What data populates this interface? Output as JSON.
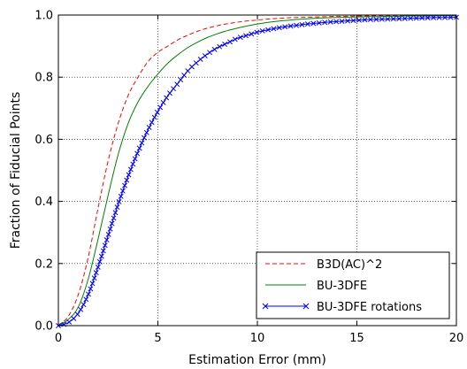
{
  "chart_data": {
    "type": "line",
    "xlabel": "Estimation Error (mm)",
    "ylabel": "Fraction of Fiducial Points",
    "xlim": [
      0,
      20
    ],
    "ylim": [
      0.0,
      1.0
    ],
    "x_ticks": [
      0,
      5,
      10,
      15,
      20
    ],
    "x_tick_labels": [
      "0",
      "5",
      "10",
      "15",
      "20"
    ],
    "y_ticks": [
      0.0,
      0.2,
      0.4,
      0.6,
      0.8,
      1.0
    ],
    "y_tick_labels": [
      "0.0",
      "0.2",
      "0.4",
      "0.6",
      "0.8",
      "1.0"
    ],
    "grid": true,
    "legend_position": "bottom-right",
    "x": [
      0,
      0.5,
      1,
      1.5,
      2,
      2.5,
      3,
      3.5,
      4,
      4.5,
      5,
      5.5,
      6,
      6.5,
      7,
      7.5,
      8,
      8.5,
      9,
      9.5,
      10,
      10.5,
      11,
      11.5,
      12,
      12.5,
      13,
      13.5,
      14,
      14.5,
      15,
      15.5,
      16,
      16.5,
      17,
      17.5,
      18,
      18.5,
      19,
      19.5,
      20
    ],
    "series": [
      {
        "name": "B3D(AC)^2",
        "color": "#ff0000",
        "style": "dashed",
        "marker": "none",
        "values": [
          0.0,
          0.03,
          0.1,
          0.22,
          0.38,
          0.53,
          0.65,
          0.74,
          0.8,
          0.85,
          0.88,
          0.9,
          0.92,
          0.935,
          0.948,
          0.958,
          0.966,
          0.972,
          0.977,
          0.981,
          0.984,
          0.987,
          0.989,
          0.991,
          0.992,
          0.993,
          0.994,
          0.995,
          0.996,
          0.996,
          0.997,
          0.997,
          0.998,
          0.998,
          0.998,
          0.999,
          0.999,
          0.999,
          0.999,
          0.999,
          0.999
        ]
      },
      {
        "name": "BU-3DFE",
        "color": "#008000",
        "style": "solid",
        "marker": "none",
        "values": [
          0.0,
          0.02,
          0.06,
          0.15,
          0.28,
          0.42,
          0.55,
          0.65,
          0.72,
          0.77,
          0.81,
          0.845,
          0.872,
          0.895,
          0.913,
          0.928,
          0.94,
          0.95,
          0.958,
          0.965,
          0.971,
          0.976,
          0.98,
          0.983,
          0.986,
          0.988,
          0.99,
          0.991,
          0.992,
          0.993,
          0.994,
          0.995,
          0.995,
          0.996,
          0.996,
          0.997,
          0.997,
          0.997,
          0.998,
          0.998,
          0.998
        ]
      },
      {
        "name": "BU-3DFE rotations",
        "color": "#0000ff",
        "style": "solid",
        "marker": "x",
        "values": [
          0.0,
          0.01,
          0.04,
          0.1,
          0.19,
          0.29,
          0.39,
          0.48,
          0.56,
          0.63,
          0.69,
          0.74,
          0.78,
          0.82,
          0.85,
          0.875,
          0.895,
          0.91,
          0.925,
          0.935,
          0.945,
          0.952,
          0.958,
          0.963,
          0.967,
          0.971,
          0.974,
          0.977,
          0.979,
          0.981,
          0.983,
          0.985,
          0.986,
          0.987,
          0.988,
          0.989,
          0.99,
          0.991,
          0.992,
          0.992,
          0.993
        ]
      }
    ]
  }
}
